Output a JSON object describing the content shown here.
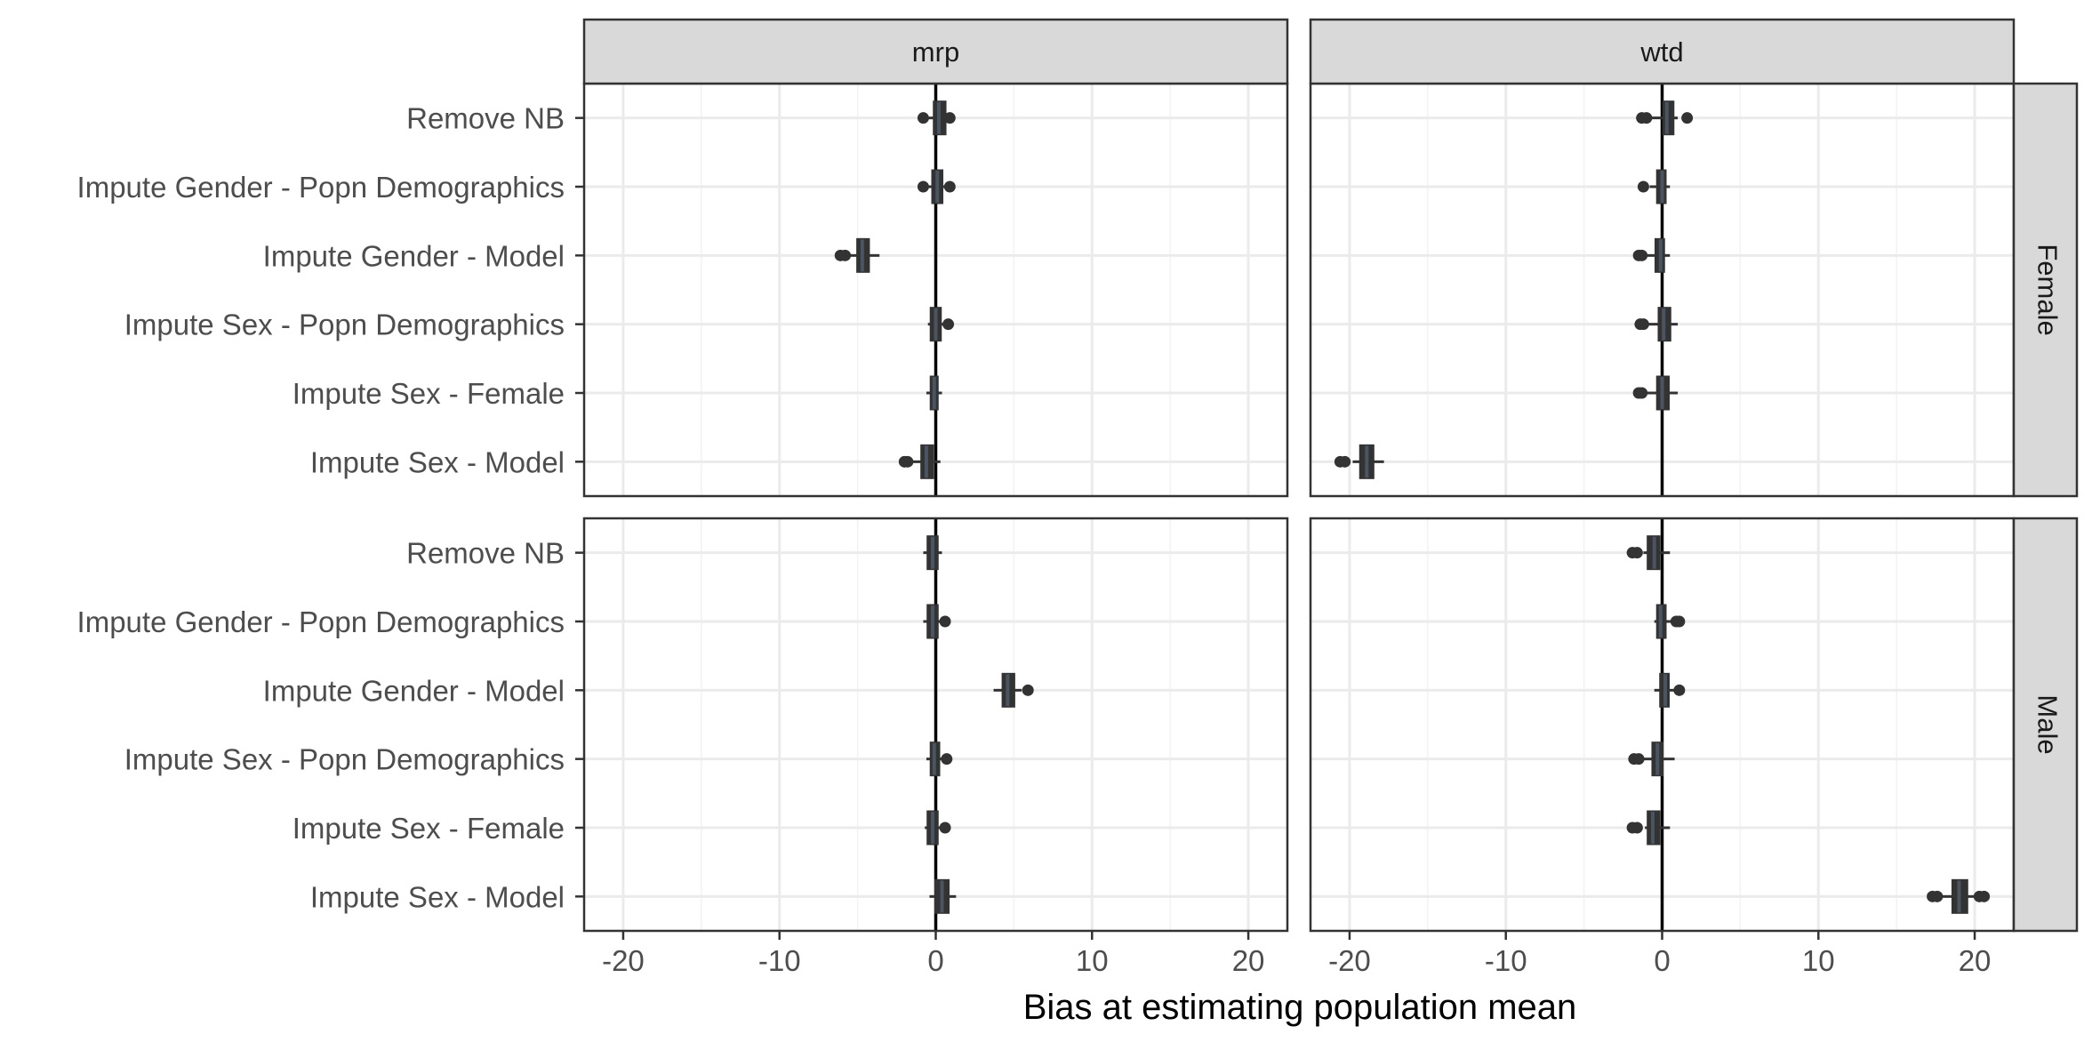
{
  "chart_data": {
    "type": "boxplot",
    "facet_columns": [
      "mrp",
      "wtd"
    ],
    "facet_rows": [
      "Female",
      "Male"
    ],
    "categories": [
      "Remove NB",
      "Impute Gender - Popn Demographics",
      "Impute Gender - Model",
      "Impute Sex - Popn Demographics",
      "Impute Sex - Female",
      "Impute Sex - Model"
    ],
    "xlabel": "Bias at estimating population mean",
    "ylabel": "",
    "xlim": [
      -22.5,
      22.5
    ],
    "xticks": [
      -20,
      -10,
      0,
      10,
      20
    ],
    "x_tick_labels": [
      "-20",
      "-10",
      "0",
      "10",
      "20"
    ],
    "reference_line": 0,
    "grid": true,
    "panels": [
      {
        "col": "mrp",
        "row": "Female",
        "boxes": [
          {
            "category": "Remove NB",
            "whisker_low": -0.5,
            "q1": -0.1,
            "median": 0.2,
            "q3": 0.6,
            "whisker_high": 0.8,
            "outliers": [
              -0.8,
              0.9
            ]
          },
          {
            "category": "Impute Gender - Popn Demographics",
            "whisker_low": -0.5,
            "q1": -0.2,
            "median": 0.1,
            "q3": 0.4,
            "whisker_high": 0.7,
            "outliers": [
              -0.8,
              0.9
            ]
          },
          {
            "category": "Impute Gender - Model",
            "whisker_low": -5.5,
            "q1": -5.0,
            "median": -4.7,
            "q3": -4.3,
            "whisker_high": -3.6,
            "outliers": [
              -6.1,
              -5.8
            ]
          },
          {
            "category": "Impute Sex - Popn Demographics",
            "whisker_low": -0.5,
            "q1": -0.3,
            "median": 0.0,
            "q3": 0.3,
            "whisker_high": 0.6,
            "outliers": [
              0.8
            ]
          },
          {
            "category": "Impute Sex - Female",
            "whisker_low": -0.6,
            "q1": -0.3,
            "median": -0.1,
            "q3": 0.1,
            "whisker_high": 0.4,
            "outliers": []
          },
          {
            "category": "Impute Sex - Model",
            "whisker_low": -1.5,
            "q1": -0.9,
            "median": -0.6,
            "q3": -0.2,
            "whisker_high": 0.3,
            "outliers": [
              -2.0,
              -1.8
            ]
          }
        ]
      },
      {
        "col": "wtd",
        "row": "Female",
        "boxes": [
          {
            "category": "Remove NB",
            "whisker_low": -0.8,
            "q1": 0.1,
            "median": 0.3,
            "q3": 0.7,
            "whisker_high": 1.0,
            "outliers": [
              -1.3,
              -1.0,
              1.6
            ]
          },
          {
            "category": "Impute Gender - Popn Demographics",
            "whisker_low": -0.8,
            "q1": -0.3,
            "median": 0.0,
            "q3": 0.2,
            "whisker_high": 0.5,
            "outliers": [
              -1.2
            ]
          },
          {
            "category": "Impute Gender - Model",
            "whisker_low": -1.0,
            "q1": -0.4,
            "median": -0.1,
            "q3": 0.1,
            "whisker_high": 0.5,
            "outliers": [
              -1.5,
              -1.3
            ]
          },
          {
            "category": "Impute Sex - Popn Demographics",
            "whisker_low": -1.0,
            "q1": -0.2,
            "median": 0.1,
            "q3": 0.5,
            "whisker_high": 1.0,
            "outliers": [
              -1.4,
              -1.2
            ]
          },
          {
            "category": "Impute Sex - Female",
            "whisker_low": -1.0,
            "q1": -0.3,
            "median": 0.0,
            "q3": 0.4,
            "whisker_high": 1.0,
            "outliers": [
              -1.5,
              -1.3
            ]
          },
          {
            "category": "Impute Sex - Model",
            "whisker_low": -19.8,
            "q1": -19.3,
            "median": -18.9,
            "q3": -18.5,
            "whisker_high": -17.8,
            "outliers": [
              -20.6,
              -20.3
            ]
          }
        ]
      },
      {
        "col": "mrp",
        "row": "Male",
        "boxes": [
          {
            "category": "Remove NB",
            "whisker_low": -0.8,
            "q1": -0.5,
            "median": -0.2,
            "q3": 0.1,
            "whisker_high": 0.4,
            "outliers": []
          },
          {
            "category": "Impute Gender - Popn Demographics",
            "whisker_low": -0.8,
            "q1": -0.5,
            "median": -0.2,
            "q3": 0.1,
            "whisker_high": 0.4,
            "outliers": [
              0.6
            ]
          },
          {
            "category": "Impute Gender - Model",
            "whisker_low": 3.7,
            "q1": 4.3,
            "median": 4.6,
            "q3": 5.0,
            "whisker_high": 5.5,
            "outliers": [
              5.9
            ]
          },
          {
            "category": "Impute Sex - Popn Demographics",
            "whisker_low": -0.6,
            "q1": -0.3,
            "median": -0.1,
            "q3": 0.2,
            "whisker_high": 0.5,
            "outliers": [
              0.7
            ]
          },
          {
            "category": "Impute Sex - Female",
            "whisker_low": -0.7,
            "q1": -0.5,
            "median": -0.2,
            "q3": 0.1,
            "whisker_high": 0.4,
            "outliers": [
              0.6
            ]
          },
          {
            "category": "Impute Sex - Model",
            "whisker_low": -0.4,
            "q1": 0.0,
            "median": 0.4,
            "q3": 0.8,
            "whisker_high": 1.3,
            "outliers": []
          }
        ]
      },
      {
        "col": "wtd",
        "row": "Male",
        "boxes": [
          {
            "category": "Remove NB",
            "whisker_low": -1.2,
            "q1": -0.9,
            "median": -0.5,
            "q3": -0.2,
            "whisker_high": 0.5,
            "outliers": [
              -1.9,
              -1.6
            ]
          },
          {
            "category": "Impute Gender - Popn Demographics",
            "whisker_low": -0.5,
            "q1": -0.3,
            "median": -0.1,
            "q3": 0.2,
            "whisker_high": 0.6,
            "outliers": [
              0.9,
              1.1
            ]
          },
          {
            "category": "Impute Gender - Model",
            "whisker_low": -0.5,
            "q1": -0.1,
            "median": 0.2,
            "q3": 0.4,
            "whisker_high": 0.8,
            "outliers": [
              1.1
            ]
          },
          {
            "category": "Impute Sex - Popn Demographics",
            "whisker_low": -1.2,
            "q1": -0.6,
            "median": -0.3,
            "q3": 0.0,
            "whisker_high": 0.8,
            "outliers": [
              -1.8,
              -1.5
            ]
          },
          {
            "category": "Impute Sex - Female",
            "whisker_low": -1.1,
            "q1": -0.9,
            "median": -0.6,
            "q3": -0.2,
            "whisker_high": 0.5,
            "outliers": [
              -1.9,
              -1.6
            ]
          },
          {
            "category": "Impute Sex - Model",
            "whisker_low": 17.9,
            "q1": 18.6,
            "median": 19.0,
            "q3": 19.5,
            "whisker_high": 20.0,
            "outliers": [
              17.3,
              17.6,
              20.3,
              20.6
            ]
          }
        ]
      }
    ]
  }
}
